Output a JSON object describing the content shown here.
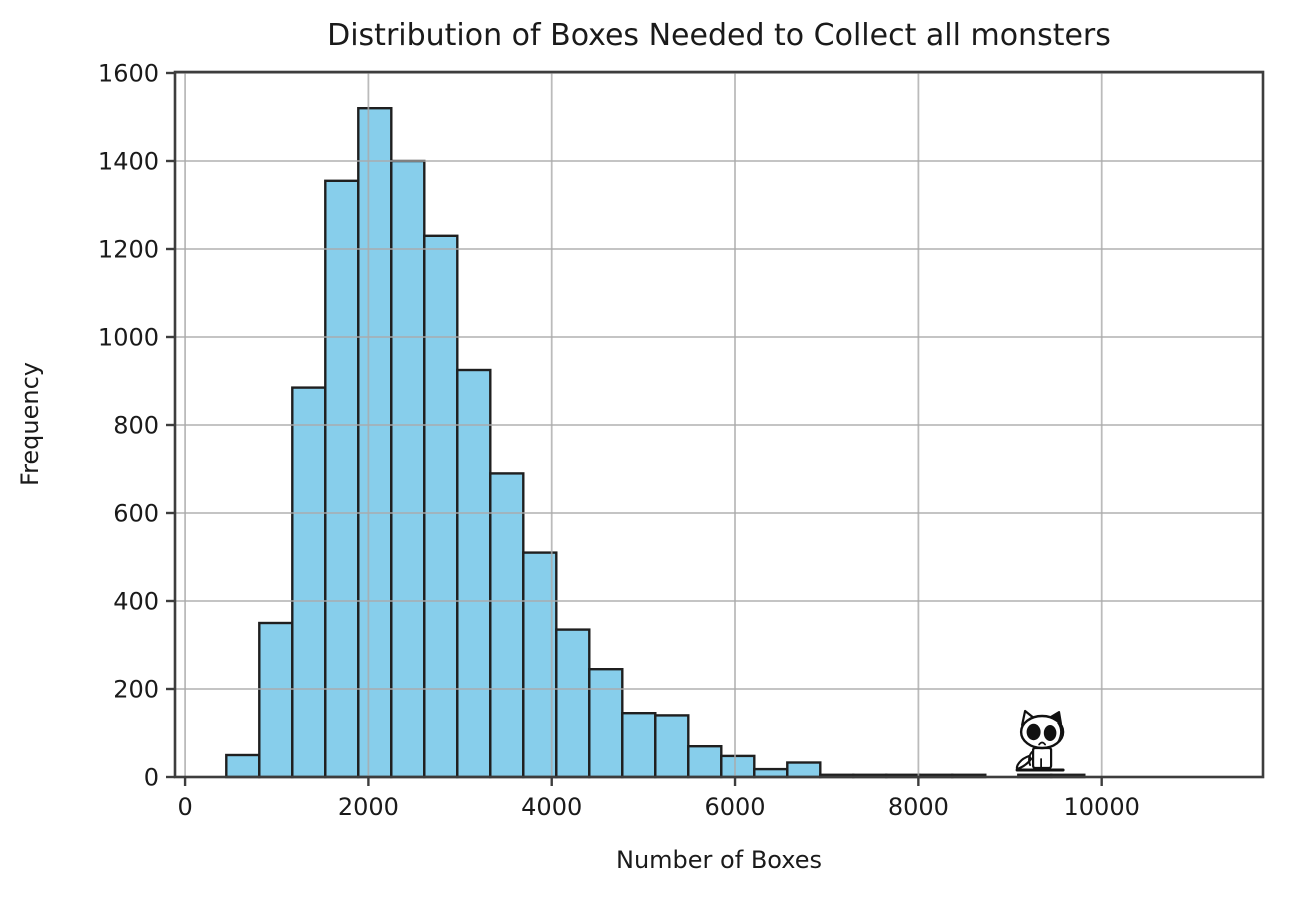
{
  "figure": {
    "background": "#ffffff"
  },
  "chart_data": {
    "type": "bar",
    "chart_kind": "histogram",
    "title": "Distribution of Boxes Needed to Collect all monsters",
    "xlabel": "Number of Boxes",
    "ylabel": "Frequency",
    "bin_start": 450,
    "bin_width": 360,
    "frequencies": [
      50,
      350,
      885,
      1355,
      1520,
      1400,
      1230,
      925,
      690,
      510,
      335,
      245,
      145,
      140,
      70,
      48,
      18,
      33,
      5,
      5,
      5,
      5,
      5,
      0,
      5,
      5
    ],
    "xticks": [
      0,
      2000,
      4000,
      6000,
      8000,
      10000
    ],
    "yticks": [
      0,
      200,
      400,
      600,
      800,
      1000,
      1200,
      1400,
      1600
    ],
    "xlim": [
      -110,
      11760
    ],
    "ylim": [
      0,
      1600
    ],
    "grid": true,
    "legend": "none",
    "colors": {
      "bar_fill": "#87CEEB",
      "bar_edge": "#1f1f1f",
      "grid": "#aaaaaa",
      "spine": "#3d3d3d",
      "text": "#1a1a1a"
    },
    "annotations": [
      {
        "name": "cat-doodle",
        "x": 9350,
        "y": 0
      }
    ]
  }
}
